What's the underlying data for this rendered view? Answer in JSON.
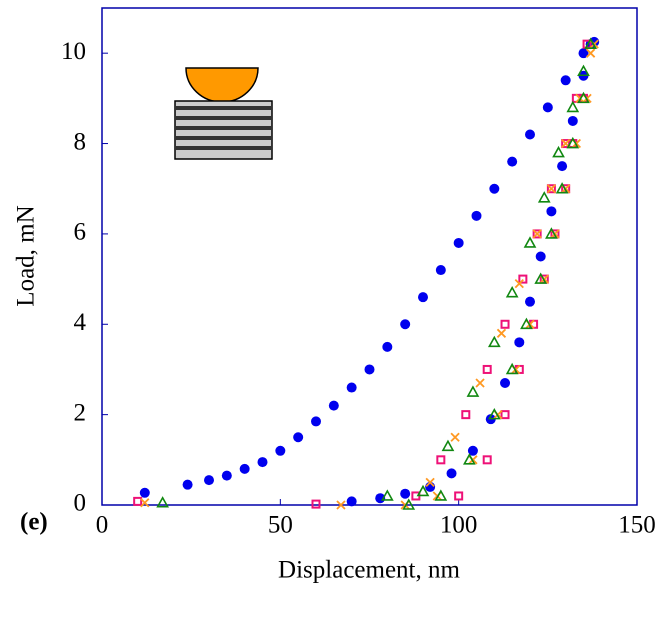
{
  "chart_data": {
    "type": "scatter",
    "annotation": "(e)",
    "x_label": "Displacement, nm",
    "y_label": "Load, mN",
    "xlim": [
      0,
      150
    ],
    "xticks": [
      0,
      50,
      100,
      150
    ],
    "ylim": [
      0,
      11
    ],
    "yticks": [
      0,
      2,
      4,
      6,
      8,
      10
    ],
    "series": [
      {
        "color": "#0000ee",
        "marker": "circle",
        "x": [
          12,
          24,
          30,
          35,
          40,
          45,
          50,
          55,
          60,
          65,
          70,
          75,
          80,
          85,
          90,
          95,
          100,
          105,
          110,
          115,
          120,
          125,
          130,
          135,
          138,
          137,
          135,
          132,
          129,
          126,
          123,
          120,
          117,
          113,
          109,
          104,
          98,
          92,
          85,
          78,
          70
        ],
        "values": [
          0.27,
          0.45,
          0.55,
          0.65,
          0.8,
          0.95,
          1.2,
          1.5,
          1.85,
          2.2,
          2.6,
          3.0,
          3.5,
          4.0,
          4.6,
          5.2,
          5.8,
          6.4,
          7.0,
          7.6,
          8.2,
          8.8,
          9.4,
          10.0,
          10.25,
          10.2,
          9.5,
          8.5,
          7.5,
          6.5,
          5.5,
          4.5,
          3.6,
          2.7,
          1.9,
          1.2,
          0.7,
          0.4,
          0.25,
          0.15,
          0.08
        ]
      },
      {
        "color": "#ee1177",
        "marker": "square",
        "x": [
          10,
          60,
          88,
          95,
          102,
          108,
          113,
          118,
          122,
          126,
          130,
          133,
          136,
          135,
          132,
          130,
          127,
          124,
          121,
          117,
          113,
          108,
          100
        ],
        "values": [
          0.08,
          0.02,
          0.2,
          1.0,
          2.0,
          3.0,
          4.0,
          5.0,
          6.0,
          7.0,
          8.0,
          9.0,
          10.2,
          9.0,
          8.0,
          7.0,
          6.0,
          5.0,
          4.0,
          3.0,
          2.0,
          1.0,
          0.2
        ]
      },
      {
        "color": "#ff9922",
        "marker": "cross",
        "x": [
          12,
          67,
          85,
          92,
          99,
          106,
          112,
          117,
          122,
          126,
          130,
          134,
          137,
          138,
          136,
          133,
          130,
          127,
          124,
          120,
          116,
          111,
          104,
          94
        ],
        "values": [
          0.05,
          0.0,
          0.0,
          0.5,
          1.5,
          2.7,
          3.8,
          4.9,
          6.0,
          7.0,
          8.0,
          9.0,
          10.0,
          10.2,
          9.0,
          8.0,
          7.0,
          6.0,
          5.0,
          4.0,
          3.0,
          2.0,
          1.0,
          0.2
        ]
      },
      {
        "color": "#118811",
        "marker": "triangle",
        "x": [
          17,
          80,
          86,
          90,
          97,
          104,
          110,
          115,
          120,
          124,
          128,
          132,
          135,
          137,
          135,
          132,
          129,
          126,
          123,
          119,
          115,
          110,
          103,
          95
        ],
        "values": [
          0.05,
          0.2,
          0.0,
          0.3,
          1.3,
          2.5,
          3.6,
          4.7,
          5.8,
          6.8,
          7.8,
          8.8,
          9.6,
          10.2,
          9.0,
          8.0,
          7.0,
          6.0,
          5.0,
          4.0,
          3.0,
          2.0,
          1.0,
          0.2
        ]
      }
    ]
  }
}
